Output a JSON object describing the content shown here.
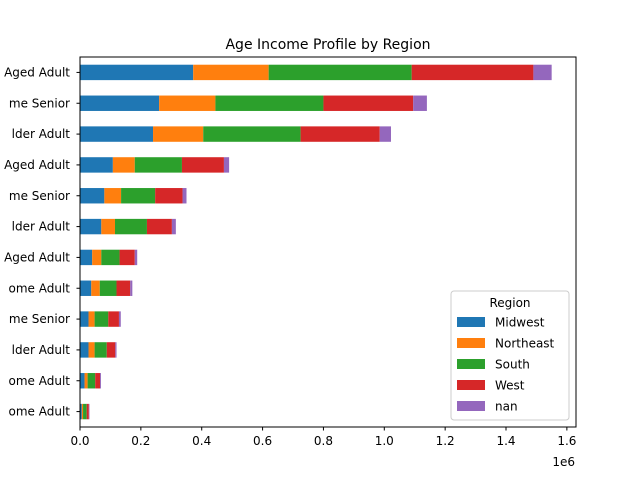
{
  "chart_data": {
    "type": "bar",
    "orientation": "horizontal",
    "stacked": true,
    "title": "Age Income Profile by Region",
    "xlabel": "",
    "ylabel": "",
    "x_scale_label": "1e6",
    "xlim": [
      0,
      1.63
    ],
    "x_ticks": [
      0.0,
      0.2,
      0.4,
      0.6,
      0.8,
      1.0,
      1.2,
      1.4,
      1.6
    ],
    "x_tick_labels": [
      "0.0",
      "0.2",
      "0.4",
      "0.6",
      "0.8",
      "1.0",
      "1.2",
      "1.4",
      "1.6"
    ],
    "grid": false,
    "legend": {
      "title": "Region",
      "placement": "lower-right"
    },
    "categories": [
      "Aged Adult",
      "me Senior",
      "lder Adult",
      "Aged Adult",
      "me Senior",
      "lder Adult",
      "Aged Adult",
      "ome Adult",
      "me Senior",
      "lder Adult",
      "ome Adult",
      "ome Adult"
    ],
    "series": [
      {
        "name": "Midwest",
        "color": "#1f77b4",
        "values": [
          0.372,
          0.26,
          0.24,
          0.108,
          0.08,
          0.07,
          0.04,
          0.037,
          0.028,
          0.028,
          0.015,
          0.006
        ]
      },
      {
        "name": "Northeast",
        "color": "#ff7f0e",
        "values": [
          0.248,
          0.185,
          0.165,
          0.072,
          0.055,
          0.045,
          0.03,
          0.028,
          0.02,
          0.02,
          0.01,
          0.004
        ]
      },
      {
        "name": "South",
        "color": "#2ca02c",
        "values": [
          0.47,
          0.355,
          0.32,
          0.155,
          0.112,
          0.105,
          0.06,
          0.055,
          0.045,
          0.04,
          0.025,
          0.012
        ]
      },
      {
        "name": "West",
        "color": "#d62728",
        "values": [
          0.4,
          0.295,
          0.26,
          0.138,
          0.09,
          0.082,
          0.05,
          0.045,
          0.035,
          0.028,
          0.016,
          0.007
        ]
      },
      {
        "name": "nan",
        "color": "#9467bd",
        "values": [
          0.06,
          0.045,
          0.037,
          0.017,
          0.013,
          0.013,
          0.008,
          0.007,
          0.006,
          0.004,
          0.003,
          0.002
        ]
      }
    ]
  }
}
